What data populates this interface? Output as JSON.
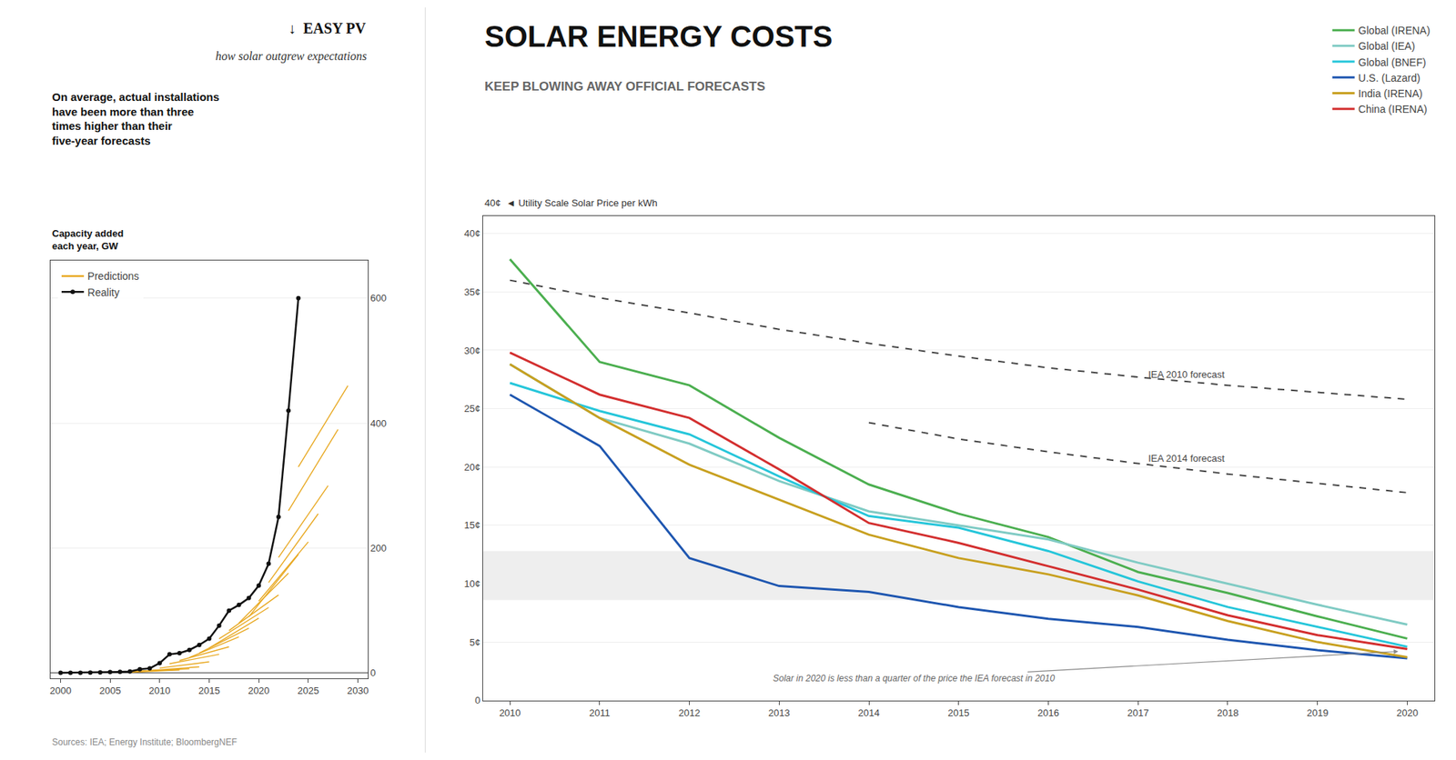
{
  "chart_data": [
    {
      "type": "line",
      "title": "↓  EASY PV",
      "subtitle": "how solar outgrew expectations",
      "ylabel": "Capacity added\neach year, GW",
      "annotations": [
        {
          "text": "On average, actual installations\nhave been more than three\ntimes higher than their\nfive-year forecasts"
        },
        {
          "text": "Sources: IEA; Energy Institute; BloombergNEF"
        }
      ],
      "xlim": [
        1999,
        2031
      ],
      "ylim": [
        -8,
        660
      ],
      "xticks": [
        2000,
        2005,
        2010,
        2015,
        2020,
        2025,
        2030
      ],
      "yticks": [
        0,
        200,
        400,
        600
      ],
      "grid": true,
      "legend": "upper left",
      "series": [
        {
          "name": "Predictions",
          "color": "#e8a820",
          "x": [
            2007,
            2012
          ],
          "values": [
            2.0,
            5.5
          ]
        },
        {
          "color": "#e8a820",
          "x": [
            2008,
            2013
          ],
          "values": [
            2.5,
            7.0
          ]
        },
        {
          "color": "#e8a820",
          "x": [
            2009,
            2014
          ],
          "values": [
            4.0,
            10.0
          ]
        },
        {
          "color": "#e8a820",
          "x": [
            2010,
            2015
          ],
          "values": [
            8.0,
            18.0
          ]
        },
        {
          "color": "#e8a820",
          "x": [
            2011,
            2016
          ],
          "values": [
            15.0,
            30.0
          ]
        },
        {
          "color": "#e8a820",
          "x": [
            2012,
            2017
          ],
          "values": [
            20.0,
            42.0
          ]
        },
        {
          "color": "#e8a820",
          "x": [
            2013,
            2018
          ],
          "values": [
            25.0,
            58.0
          ]
        },
        {
          "color": "#e8a820",
          "x": [
            2014,
            2019
          ],
          "values": [
            32.0,
            72.0
          ]
        },
        {
          "color": "#e8a820",
          "x": [
            2015,
            2020
          ],
          "values": [
            40.0,
            88.0
          ]
        },
        {
          "color": "#e8a820",
          "x": [
            2016,
            2021
          ],
          "values": [
            55.0,
            105.0
          ]
        },
        {
          "color": "#e8a820",
          "x": [
            2017,
            2022
          ],
          "values": [
            68.0,
            125.0
          ]
        },
        {
          "color": "#e8a820",
          "x": [
            2018,
            2023
          ],
          "values": [
            80.0,
            160.0
          ]
        },
        {
          "color": "#e8a820",
          "x": [
            2019,
            2024
          ],
          "values": [
            90.0,
            190.0
          ]
        },
        {
          "color": "#e8a820",
          "x": [
            2020,
            2025
          ],
          "values": [
            115.0,
            210.0
          ]
        },
        {
          "color": "#e8a820",
          "x": [
            2021,
            2026
          ],
          "values": [
            145.0,
            255.0
          ]
        },
        {
          "color": "#e8a820",
          "x": [
            2022,
            2027
          ],
          "values": [
            185.0,
            300.0
          ]
        },
        {
          "color": "#e8a820",
          "x": [
            2023,
            2028
          ],
          "values": [
            260.0,
            390.0
          ]
        },
        {
          "color": "#e8a820",
          "x": [
            2024,
            2029
          ],
          "values": [
            330.0,
            460.0
          ]
        },
        {
          "name": "Reality",
          "color": "#111111",
          "marker": "circle",
          "x": [
            2000,
            2001,
            2002,
            2003,
            2004,
            2005,
            2006,
            2007,
            2008,
            2009,
            2010,
            2011,
            2012,
            2013,
            2014,
            2015,
            2016,
            2017,
            2018,
            2019,
            2020,
            2021,
            2022,
            2023,
            2024
          ],
          "values": [
            0.3,
            0.4,
            0.5,
            0.6,
            1.1,
            1.5,
            2.0,
            2.5,
            6.0,
            7.5,
            16.0,
            30.0,
            32.0,
            37.0,
            45.0,
            55.0,
            76.0,
            100.0,
            109.0,
            120.0,
            140.0,
            175.0,
            250.0,
            420.0,
            600.0
          ]
        }
      ]
    },
    {
      "type": "line",
      "title": "SOLAR ENERGY COSTS",
      "subtitle": "KEEP BLOWING AWAY OFFICIAL FORECASTS",
      "ylabel": "40¢  ◄ Utility Scale Solar Price per kWh",
      "xlim": [
        2009.7,
        2020.3
      ],
      "ylim": [
        0,
        0.415
      ],
      "xticks": [
        2010,
        2011,
        2012,
        2013,
        2014,
        2015,
        2016,
        2017,
        2018,
        2019,
        2020
      ],
      "yticks": [
        0,
        {
          "value": 0.05,
          "label": "5¢"
        },
        {
          "value": 0.1,
          "label": "10¢"
        },
        {
          "value": 0.15,
          "label": "15¢"
        },
        {
          "value": 0.2,
          "label": "20¢"
        },
        {
          "value": 0.25,
          "label": "25¢"
        },
        {
          "value": 0.3,
          "label": "30¢"
        },
        {
          "value": 0.35,
          "label": "35¢"
        },
        {
          "value": 0.4,
          "label": "40¢"
        }
      ],
      "grid": true,
      "legend": "upper right",
      "band": [
        0.086,
        0.128
      ],
      "annotations": [
        {
          "text": "IEA 2010 forecast",
          "x": 2017.1,
          "y": 0.268
        },
        {
          "text": "IEA 2014 forecast",
          "x": 2017.1,
          "y": 0.196
        },
        {
          "text": "Solar in 2020 is less than a quarter of the price the IEA forecast in 2010",
          "x": 2019.9,
          "y": 0.042,
          "text_x": 2014.5,
          "text_y": 0.019
        }
      ],
      "series": [
        {
          "color": "#444444",
          "line_style": "dash",
          "x": [
            2010,
            2011,
            2012,
            2013,
            2014,
            2015,
            2016,
            2017,
            2018,
            2019,
            2020
          ],
          "values": [
            0.36,
            0.345,
            0.332,
            0.318,
            0.306,
            0.295,
            0.285,
            0.277,
            0.27,
            0.264,
            0.258
          ]
        },
        {
          "color": "#444444",
          "line_style": "dash",
          "x": [
            2014,
            2015,
            2016,
            2017,
            2018,
            2019,
            2020
          ],
          "values": [
            0.238,
            0.224,
            0.213,
            0.203,
            0.194,
            0.186,
            0.178
          ]
        },
        {
          "name": "Global (IRENA)",
          "color": "#4caf50",
          "x": [
            2010,
            2011,
            2012,
            2013,
            2014,
            2015,
            2016,
            2017,
            2018,
            2019,
            2020
          ],
          "values": [
            0.378,
            0.29,
            0.27,
            0.225,
            0.185,
            0.16,
            0.14,
            0.11,
            0.092,
            0.072,
            0.053
          ]
        },
        {
          "name": "Global (IEA)",
          "color": "#80cbc4",
          "x": [
            2010,
            2011,
            2012,
            2013,
            2014,
            2015,
            2016,
            2017,
            2018,
            2019,
            2020
          ],
          "values": [
            0.288,
            0.242,
            0.22,
            0.188,
            0.162,
            0.15,
            0.138,
            0.118,
            0.1,
            0.082,
            0.065
          ]
        },
        {
          "name": "Global (BNEF)",
          "color": "#26c6da",
          "x": [
            2010,
            2011,
            2012,
            2013,
            2014,
            2015,
            2016,
            2017,
            2018,
            2019,
            2020
          ],
          "values": [
            0.272,
            0.248,
            0.228,
            0.192,
            0.158,
            0.148,
            0.128,
            0.102,
            0.08,
            0.063,
            0.046
          ]
        },
        {
          "name": "U.S. (Lazard)",
          "color": "#1e56b0",
          "x": [
            2010,
            2011,
            2012,
            2013,
            2014,
            2015,
            2016,
            2017,
            2018,
            2019,
            2020
          ],
          "values": [
            0.262,
            0.218,
            0.122,
            0.098,
            0.093,
            0.08,
            0.07,
            0.063,
            0.052,
            0.043,
            0.036
          ]
        },
        {
          "name": "India (IRENA)",
          "color": "#c8a020",
          "x": [
            2010,
            2011,
            2012,
            2013,
            2014,
            2015,
            2016,
            2017,
            2018,
            2019,
            2020
          ],
          "values": [
            0.288,
            0.242,
            0.202,
            0.172,
            0.142,
            0.122,
            0.108,
            0.09,
            0.068,
            0.05,
            0.037
          ]
        },
        {
          "name": "China (IRENA)",
          "color": "#d32f2f",
          "x": [
            2010,
            2011,
            2012,
            2013,
            2014,
            2015,
            2016,
            2017,
            2018,
            2019,
            2020
          ],
          "values": [
            0.298,
            0.262,
            0.242,
            0.198,
            0.152,
            0.135,
            0.115,
            0.095,
            0.073,
            0.056,
            0.044
          ]
        }
      ]
    }
  ]
}
